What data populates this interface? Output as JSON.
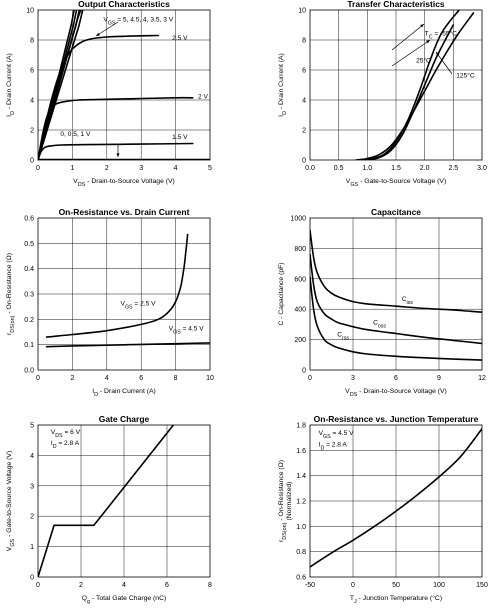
{
  "chart_data": [
    {
      "id": "output",
      "type": "line",
      "title": "Output Characteristics",
      "xlabel": "V_DS - Drain-to-Source Voltage (V)",
      "ylabel": "I_D - Drain Current (A)",
      "xlim": [
        0,
        5
      ],
      "ylim": [
        0,
        10
      ],
      "xticks": [
        "0",
        "1",
        "2",
        "3",
        "4",
        "5"
      ],
      "yticks": [
        "0",
        "2",
        "4",
        "6",
        "8",
        "10"
      ],
      "grid": true,
      "series": [
        {
          "name": "V_GS = 5, 4.5, 4, 3.5, 3 V",
          "x": [
            0,
            0.3,
            0.6,
            0.9,
            1.15,
            1.25
          ],
          "y": [
            0,
            2.6,
            5.1,
            7.4,
            9.4,
            10
          ]
        },
        {
          "name": "2.5 V",
          "x": [
            0,
            0.2,
            0.4,
            0.6,
            0.8,
            1.0,
            1.3,
            1.6,
            2.0,
            2.5,
            3.0,
            3.5
          ],
          "y": [
            0,
            2.2,
            4.1,
            5.6,
            6.7,
            7.4,
            7.9,
            8.1,
            8.2,
            8.25,
            8.28,
            8.3
          ]
        },
        {
          "name": "2 V",
          "x": [
            0,
            0.1,
            0.2,
            0.3,
            0.5,
            0.8,
            1.2,
            2.0,
            3.0,
            4.0,
            4.5
          ],
          "y": [
            0,
            1.3,
            2.4,
            3.1,
            3.7,
            3.9,
            4.0,
            4.05,
            4.1,
            4.15,
            4.15
          ]
        },
        {
          "name": "1.5 V",
          "x": [
            0,
            0.05,
            0.1,
            0.2,
            0.4,
            0.7,
            1.5,
            3.0,
            4.5
          ],
          "y": [
            0,
            0.35,
            0.6,
            0.85,
            0.95,
            1.0,
            1.03,
            1.06,
            1.1
          ]
        },
        {
          "name": "0, 0.5, 1 V",
          "x": [
            0,
            5
          ],
          "y": [
            0.03,
            0.03
          ]
        }
      ],
      "annotations": [
        {
          "text": "V_GS = 5, 4.5, 4, 3.5, 3 V",
          "x": 1.9,
          "y": 9.25
        },
        {
          "text": "2.5 V",
          "x": 3.9,
          "y": 8.0
        },
        {
          "text": "2 V",
          "x": 4.65,
          "y": 4.1
        },
        {
          "text": "1.5 V",
          "x": 3.9,
          "y": 1.4
        },
        {
          "text": "0, 0.5, 1 V",
          "x": 0.65,
          "y": 1.6
        }
      ]
    },
    {
      "id": "transfer",
      "type": "line",
      "title": "Transfer Characteristics",
      "xlabel": "V_GS - Gate-to-Source Voltage (V)",
      "ylabel": "I_D - Drain Current (A)",
      "xlim": [
        0,
        3
      ],
      "ylim": [
        0,
        10
      ],
      "xticks": [
        "0.0",
        "0.5",
        "1.0",
        "1.5",
        "2.0",
        "2.5",
        "3.0"
      ],
      "yticks": [
        "0",
        "2",
        "4",
        "6",
        "8",
        "10"
      ],
      "grid": true,
      "series": [
        {
          "name": "T_C = -55°C",
          "x": [
            0.9,
            1.1,
            1.3,
            1.5,
            1.7,
            1.9,
            2.1,
            2.3,
            2.6
          ],
          "y": [
            0,
            0.1,
            0.4,
            1.2,
            2.6,
            4.5,
            6.7,
            8.5,
            10
          ]
        },
        {
          "name": "25°C",
          "x": [
            1.0,
            1.2,
            1.4,
            1.6,
            1.8,
            2.0,
            2.2,
            2.4,
            2.5
          ],
          "y": [
            0,
            0.15,
            0.6,
            1.6,
            3.2,
            5.0,
            6.8,
            8.3,
            9.0
          ]
        },
        {
          "name": "125°C",
          "x": [
            0.8,
            1.0,
            1.2,
            1.4,
            1.6,
            1.8,
            2.0,
            2.2,
            2.4,
            2.6,
            2.85
          ],
          "y": [
            0,
            0.1,
            0.35,
            0.9,
            1.9,
            3.2,
            4.6,
            6.0,
            7.3,
            8.5,
            9.8
          ]
        }
      ],
      "annotations": [
        {
          "text": "T_C = -55°C",
          "x": 2.0,
          "y": 8.3
        },
        {
          "text": "25°C",
          "x": 1.85,
          "y": 6.5
        },
        {
          "text": "125°C",
          "x": 2.55,
          "y": 5.5
        }
      ]
    },
    {
      "id": "on_resistance",
      "type": "line",
      "title": "On-Resistance vs. Drain Current",
      "xlabel": "I_D - Drain Current (A)",
      "ylabel": "r_DS(on) - On-Resistance (Ω)",
      "xlim": [
        0,
        10
      ],
      "ylim": [
        0,
        0.6
      ],
      "xticks": [
        "0",
        "2",
        "4",
        "6",
        "8",
        "10"
      ],
      "yticks": [
        "0.0",
        "0.1",
        "0.2",
        "0.3",
        "0.4",
        "0.5",
        "0.6"
      ],
      "grid": true,
      "series": [
        {
          "name": "V_GS = 2.5 V",
          "x": [
            0.5,
            2,
            4,
            6,
            7,
            7.6,
            8.0,
            8.3,
            8.5,
            8.6,
            8.7
          ],
          "y": [
            0.13,
            0.14,
            0.155,
            0.18,
            0.2,
            0.23,
            0.27,
            0.33,
            0.41,
            0.47,
            0.535
          ]
        },
        {
          "name": "V_GS = 4.5 V",
          "x": [
            0.5,
            2,
            4,
            6,
            8,
            10
          ],
          "y": [
            0.092,
            0.095,
            0.098,
            0.101,
            0.104,
            0.107
          ]
        }
      ],
      "annotations": [
        {
          "text": "V_GS = 2.5 V",
          "x": 4.8,
          "y": 0.255
        },
        {
          "text": "V_GS = 4.5 V",
          "x": 7.6,
          "y": 0.155
        }
      ]
    },
    {
      "id": "capacitance",
      "type": "line",
      "title": "Capacitance",
      "xlabel": "V_DS - Drain-to-Source Voltage (V)",
      "ylabel": "C - Capacitance (pF)",
      "xlim": [
        0,
        12
      ],
      "ylim": [
        0,
        1000
      ],
      "xticks": [
        "0",
        "3",
        "6",
        "9",
        "12"
      ],
      "yticks": [
        "0",
        "200",
        "400",
        "600",
        "800",
        "1000"
      ],
      "grid": true,
      "series": [
        {
          "name": "C_iss",
          "x": [
            0,
            0.25,
            0.5,
            1,
            1.5,
            2,
            3,
            4,
            6,
            8,
            10,
            12
          ],
          "y": [
            920,
            740,
            640,
            550,
            505,
            480,
            450,
            435,
            420,
            405,
            395,
            380
          ]
        },
        {
          "name": "C_oss",
          "x": [
            0,
            0.25,
            0.5,
            1,
            1.5,
            2,
            3,
            4,
            6,
            8,
            10,
            12
          ],
          "y": [
            760,
            560,
            450,
            370,
            335,
            310,
            285,
            265,
            240,
            215,
            195,
            175
          ]
        },
        {
          "name": "C_rss",
          "x": [
            0,
            0.25,
            0.5,
            1,
            1.5,
            2,
            3,
            4,
            6,
            8,
            10,
            12
          ],
          "y": [
            610,
            400,
            290,
            200,
            165,
            145,
            120,
            105,
            90,
            80,
            72,
            65
          ]
        }
      ],
      "annotations": [
        {
          "text": "C_iss",
          "x": 6.4,
          "y": 455
        },
        {
          "text": "C_oss",
          "x": 4.4,
          "y": 300
        },
        {
          "text": "C_rss",
          "x": 1.9,
          "y": 220
        }
      ]
    },
    {
      "id": "gate_charge",
      "type": "line",
      "title": "Gate Charge",
      "xlabel": "Q_g - Total Gate Charge (nC)",
      "ylabel": "V_GS - Gate-to-Source Voltage (V)",
      "xlim": [
        0,
        8
      ],
      "ylim": [
        0,
        5
      ],
      "xticks": [
        "0",
        "2",
        "4",
        "6",
        "8"
      ],
      "yticks": [
        "0",
        "1",
        "2",
        "3",
        "4",
        "5"
      ],
      "grid": true,
      "series": [
        {
          "name": "V_DS = 6 V, I_D = 2.8 A",
          "x": [
            0,
            0.75,
            2.6,
            6.3
          ],
          "y": [
            0,
            1.7,
            1.7,
            5
          ]
        }
      ],
      "annotations": [
        {
          "text": "V_DS = 6 V",
          "x": 0.6,
          "y": 4.7
        },
        {
          "text": "I_D = 2.8 A",
          "x": 0.6,
          "y": 4.35
        }
      ]
    },
    {
      "id": "on_resistance_temp",
      "type": "line",
      "title": "On-Resistance vs. Junction Temperature",
      "xlabel": "T_J - Junction Temperature (°C)",
      "ylabel": "r_DS(on) - On-Resistance (Ω) (Normalized)",
      "xlim": [
        -50,
        150
      ],
      "ylim": [
        0.6,
        1.8
      ],
      "xticks": [
        "-50",
        "0",
        "50",
        "100",
        "150"
      ],
      "yticks": [
        "0.6",
        "0.8",
        "1.0",
        "1.2",
        "1.4",
        "1.6",
        "1.8"
      ],
      "grid": true,
      "series": [
        {
          "name": "V_GS = 4.5 V, I_D = 2.8 A",
          "x": [
            -50,
            -25,
            0,
            25,
            50,
            75,
            100,
            125,
            150
          ],
          "y": [
            0.68,
            0.79,
            0.89,
            1.0,
            1.12,
            1.25,
            1.39,
            1.55,
            1.77
          ]
        }
      ],
      "annotations": [
        {
          "text": "V_GS = 4.5 V",
          "x": -40,
          "y": 1.72
        },
        {
          "text": "I_D = 2.8 A",
          "x": -40,
          "y": 1.63
        }
      ]
    }
  ]
}
